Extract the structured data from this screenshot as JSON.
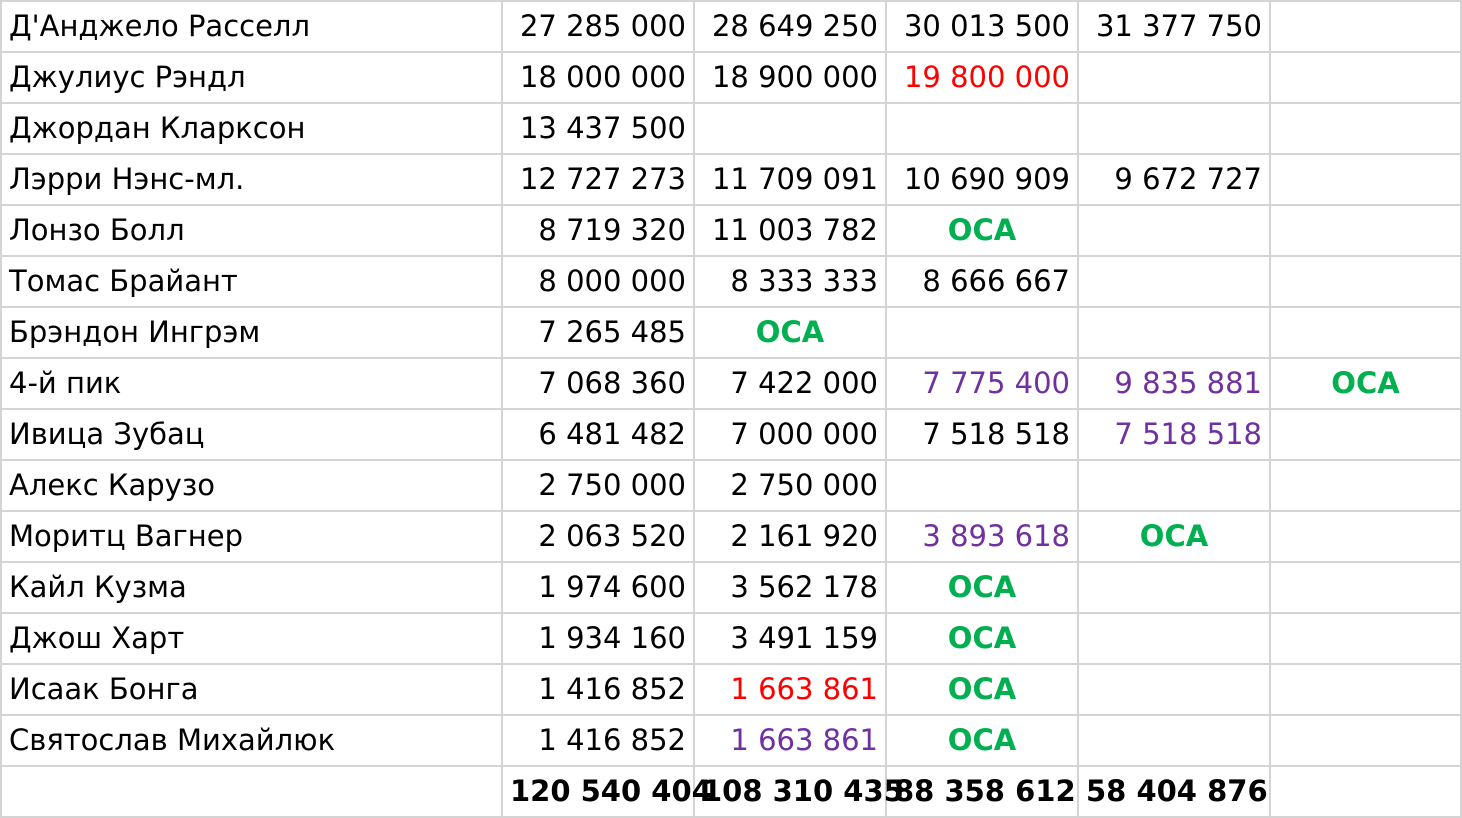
{
  "colors": {
    "text": "#000000",
    "grid": "#d4d4d4",
    "red": "#ff0000",
    "purple": "#7030a0",
    "green": "#00b050"
  },
  "rows": [
    {
      "name": "Д'Анджело Расселл",
      "cells": [
        {
          "text": "27 285 000"
        },
        {
          "text": "28 649 250"
        },
        {
          "text": "30 013 500"
        },
        {
          "text": "31 377 750"
        },
        {
          "text": ""
        }
      ]
    },
    {
      "name": "Джулиус Рэндл",
      "cells": [
        {
          "text": "18 000 000"
        },
        {
          "text": "18 900 000"
        },
        {
          "text": "19 800 000",
          "style": "red"
        },
        {
          "text": ""
        },
        {
          "text": ""
        }
      ]
    },
    {
      "name": "Джордан Кларксон",
      "cells": [
        {
          "text": "13 437 500"
        },
        {
          "text": ""
        },
        {
          "text": ""
        },
        {
          "text": ""
        },
        {
          "text": ""
        }
      ]
    },
    {
      "name": "Лэрри Нэнс-мл.",
      "cells": [
        {
          "text": "12 727 273"
        },
        {
          "text": "11 709 091"
        },
        {
          "text": "10 690 909"
        },
        {
          "text": "9 672 727"
        },
        {
          "text": ""
        }
      ]
    },
    {
      "name": "Лонзо Болл",
      "cells": [
        {
          "text": "8 719 320"
        },
        {
          "text": "11 003 782"
        },
        {
          "text": "ОСА",
          "style": "green"
        },
        {
          "text": ""
        },
        {
          "text": ""
        }
      ]
    },
    {
      "name": "Томас Брайант",
      "cells": [
        {
          "text": "8 000 000"
        },
        {
          "text": "8 333 333"
        },
        {
          "text": "8 666 667"
        },
        {
          "text": ""
        },
        {
          "text": ""
        }
      ]
    },
    {
      "name": "Брэндон Ингрэм",
      "cells": [
        {
          "text": "7 265 485"
        },
        {
          "text": "ОСА",
          "style": "green"
        },
        {
          "text": ""
        },
        {
          "text": ""
        },
        {
          "text": ""
        }
      ]
    },
    {
      "name": "4-й пик",
      "cells": [
        {
          "text": "7 068 360"
        },
        {
          "text": "7 422 000"
        },
        {
          "text": "7 775 400",
          "style": "purple"
        },
        {
          "text": "9 835 881",
          "style": "purple"
        },
        {
          "text": "ОСА",
          "style": "green"
        }
      ]
    },
    {
      "name": "Ивица Зубац",
      "cells": [
        {
          "text": "6 481 482"
        },
        {
          "text": "7 000 000"
        },
        {
          "text": "7 518 518"
        },
        {
          "text": "7 518 518",
          "style": "purple"
        },
        {
          "text": ""
        }
      ]
    },
    {
      "name": "Алекс Карузо",
      "cells": [
        {
          "text": "2 750 000"
        },
        {
          "text": "2 750 000"
        },
        {
          "text": ""
        },
        {
          "text": ""
        },
        {
          "text": ""
        }
      ]
    },
    {
      "name": "Моритц Вагнер",
      "cells": [
        {
          "text": "2 063 520"
        },
        {
          "text": "2 161 920"
        },
        {
          "text": "3 893 618",
          "style": "purple"
        },
        {
          "text": "ОСА",
          "style": "green"
        },
        {
          "text": ""
        }
      ]
    },
    {
      "name": "Кайл Кузма",
      "cells": [
        {
          "text": "1 974 600"
        },
        {
          "text": "3 562 178"
        },
        {
          "text": "ОСА",
          "style": "green"
        },
        {
          "text": ""
        },
        {
          "text": ""
        }
      ]
    },
    {
      "name": "Джош Харт",
      "cells": [
        {
          "text": "1 934 160"
        },
        {
          "text": "3 491 159"
        },
        {
          "text": "ОСА",
          "style": "green"
        },
        {
          "text": ""
        },
        {
          "text": ""
        }
      ]
    },
    {
      "name": "Исаак Бонга",
      "cells": [
        {
          "text": "1 416 852"
        },
        {
          "text": "1 663 861",
          "style": "red"
        },
        {
          "text": "ОСА",
          "style": "green"
        },
        {
          "text": ""
        },
        {
          "text": ""
        }
      ]
    },
    {
      "name": "Святослав Михайлюк",
      "cells": [
        {
          "text": "1 416 852"
        },
        {
          "text": "1 663 861",
          "style": "purple"
        },
        {
          "text": "ОСА",
          "style": "green"
        },
        {
          "text": ""
        },
        {
          "text": ""
        }
      ]
    }
  ],
  "totals": {
    "label": "",
    "cells": [
      "120 540 404",
      "108 310 435",
      "88 358 612",
      "58 404 876",
      ""
    ]
  }
}
